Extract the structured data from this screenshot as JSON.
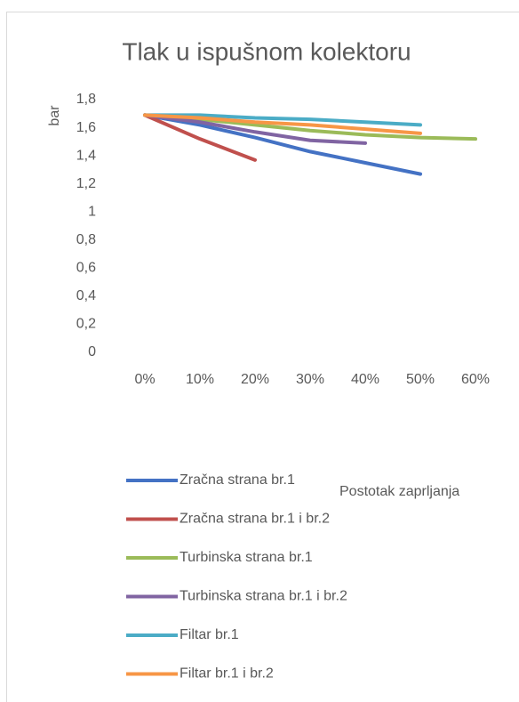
{
  "chart_data": {
    "type": "line",
    "title": "Tlak u ispušnom kolektoru",
    "y_label": "bar",
    "x_label": "Postotak zaprljanja",
    "categories": [
      "0%",
      "10%",
      "20%",
      "30%",
      "40%",
      "50%",
      "60%"
    ],
    "ylim": [
      0,
      1.8
    ],
    "yticks": [
      0,
      {
        "value": 0.2,
        "label": "0,2"
      },
      {
        "value": 0.4,
        "label": "0,4"
      },
      {
        "value": 0.6,
        "label": "0,6"
      },
      {
        "value": 0.8,
        "label": "0,8"
      },
      1,
      {
        "value": 1.2,
        "label": "1,2"
      },
      {
        "value": 1.4,
        "label": "1,4"
      },
      {
        "value": 1.6,
        "label": "1,6"
      },
      {
        "value": 1.8,
        "label": "1,8"
      }
    ],
    "grid": false,
    "series": [
      {
        "name": "Zračna strana br.1",
        "color": "#4472c4",
        "values": [
          1.69,
          1.62,
          1.53,
          1.43,
          1.35,
          1.27,
          null
        ]
      },
      {
        "name": "Zračna strana br.1 i br.2",
        "color": "#c0504d",
        "values": [
          1.69,
          1.52,
          1.37,
          null,
          null,
          null,
          null
        ]
      },
      {
        "name": "Turbinska strana br.1",
        "color": "#9bbb59",
        "values": [
          1.69,
          1.66,
          1.62,
          1.58,
          1.55,
          1.53,
          1.52
        ]
      },
      {
        "name": "Turbinska strana br.1 i br.2",
        "color": "#8064a2",
        "values": [
          1.69,
          1.64,
          1.57,
          1.51,
          1.49,
          null,
          null
        ]
      },
      {
        "name": "Filtar br.1",
        "color": "#4bacc6",
        "values": [
          1.69,
          1.69,
          1.67,
          1.66,
          1.64,
          1.62,
          null
        ]
      },
      {
        "name": "Filtar br.1 i br.2",
        "color": "#f79646",
        "values": [
          1.69,
          1.67,
          1.64,
          1.62,
          1.59,
          1.56,
          null
        ]
      }
    ]
  }
}
